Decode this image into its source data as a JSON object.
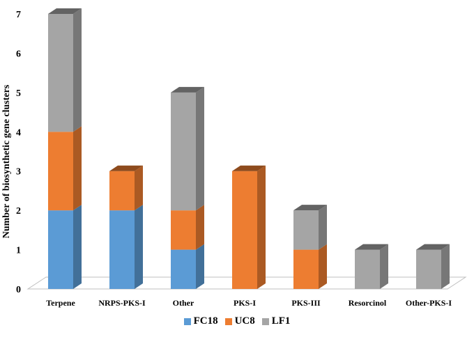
{
  "chart_data": {
    "type": "bar",
    "stacked": true,
    "three_d": true,
    "categories": [
      "Terpene",
      "NRPS-PKS-I",
      "Other",
      "PKS-I",
      "PKS-III",
      "Resorcinol",
      "Other-PKS-I"
    ],
    "series": [
      {
        "name": "FC18",
        "values": [
          2,
          2,
          1,
          0,
          0,
          0,
          0
        ],
        "color": "#5b9bd5"
      },
      {
        "name": "UC8",
        "values": [
          2,
          1,
          1,
          3,
          1,
          0,
          0
        ],
        "color": "#ed7d31"
      },
      {
        "name": "LF1",
        "values": [
          3,
          0,
          3,
          0,
          1,
          1,
          1
        ],
        "color": "#a5a5a5"
      }
    ],
    "ylabel": "Number of biosynthetic gene clusters",
    "xlabel": "",
    "ylim": [
      0,
      7
    ],
    "yticks": [
      "0",
      "1",
      "2",
      "3",
      "4",
      "5",
      "6",
      "7"
    ],
    "grid": false,
    "legend_position": "bottom"
  }
}
